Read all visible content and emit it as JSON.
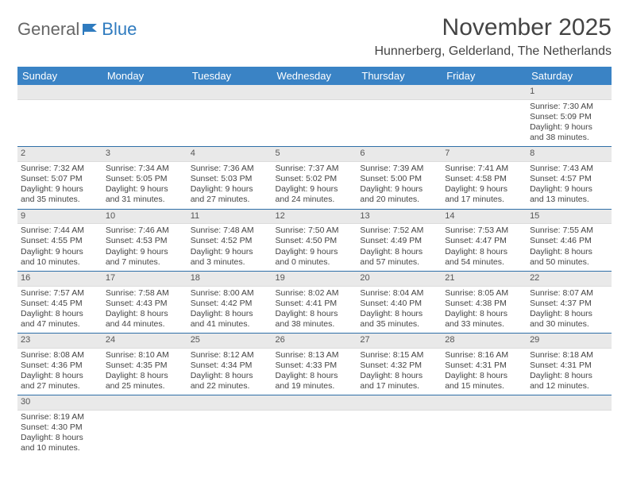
{
  "logo": {
    "text_general": "General",
    "text_blue": "Blue"
  },
  "title": "November 2025",
  "location": "Hunnerberg, Gelderland, The Netherlands",
  "colors": {
    "header_bg": "#3a83c5",
    "header_text": "#ffffff",
    "daynum_bg": "#e9e9e9",
    "row_border": "#2f6fa8",
    "logo_blue": "#2f7bbf",
    "text": "#444444"
  },
  "day_headers": [
    "Sunday",
    "Monday",
    "Tuesday",
    "Wednesday",
    "Thursday",
    "Friday",
    "Saturday"
  ],
  "weeks": [
    [
      {
        "blank": true
      },
      {
        "blank": true
      },
      {
        "blank": true
      },
      {
        "blank": true
      },
      {
        "blank": true
      },
      {
        "blank": true
      },
      {
        "n": "1",
        "sunrise": "Sunrise: 7:30 AM",
        "sunset": "Sunset: 5:09 PM",
        "day1": "Daylight: 9 hours",
        "day2": "and 38 minutes."
      }
    ],
    [
      {
        "n": "2",
        "sunrise": "Sunrise: 7:32 AM",
        "sunset": "Sunset: 5:07 PM",
        "day1": "Daylight: 9 hours",
        "day2": "and 35 minutes."
      },
      {
        "n": "3",
        "sunrise": "Sunrise: 7:34 AM",
        "sunset": "Sunset: 5:05 PM",
        "day1": "Daylight: 9 hours",
        "day2": "and 31 minutes."
      },
      {
        "n": "4",
        "sunrise": "Sunrise: 7:36 AM",
        "sunset": "Sunset: 5:03 PM",
        "day1": "Daylight: 9 hours",
        "day2": "and 27 minutes."
      },
      {
        "n": "5",
        "sunrise": "Sunrise: 7:37 AM",
        "sunset": "Sunset: 5:02 PM",
        "day1": "Daylight: 9 hours",
        "day2": "and 24 minutes."
      },
      {
        "n": "6",
        "sunrise": "Sunrise: 7:39 AM",
        "sunset": "Sunset: 5:00 PM",
        "day1": "Daylight: 9 hours",
        "day2": "and 20 minutes."
      },
      {
        "n": "7",
        "sunrise": "Sunrise: 7:41 AM",
        "sunset": "Sunset: 4:58 PM",
        "day1": "Daylight: 9 hours",
        "day2": "and 17 minutes."
      },
      {
        "n": "8",
        "sunrise": "Sunrise: 7:43 AM",
        "sunset": "Sunset: 4:57 PM",
        "day1": "Daylight: 9 hours",
        "day2": "and 13 minutes."
      }
    ],
    [
      {
        "n": "9",
        "sunrise": "Sunrise: 7:44 AM",
        "sunset": "Sunset: 4:55 PM",
        "day1": "Daylight: 9 hours",
        "day2": "and 10 minutes."
      },
      {
        "n": "10",
        "sunrise": "Sunrise: 7:46 AM",
        "sunset": "Sunset: 4:53 PM",
        "day1": "Daylight: 9 hours",
        "day2": "and 7 minutes."
      },
      {
        "n": "11",
        "sunrise": "Sunrise: 7:48 AM",
        "sunset": "Sunset: 4:52 PM",
        "day1": "Daylight: 9 hours",
        "day2": "and 3 minutes."
      },
      {
        "n": "12",
        "sunrise": "Sunrise: 7:50 AM",
        "sunset": "Sunset: 4:50 PM",
        "day1": "Daylight: 9 hours",
        "day2": "and 0 minutes."
      },
      {
        "n": "13",
        "sunrise": "Sunrise: 7:52 AM",
        "sunset": "Sunset: 4:49 PM",
        "day1": "Daylight: 8 hours",
        "day2": "and 57 minutes."
      },
      {
        "n": "14",
        "sunrise": "Sunrise: 7:53 AM",
        "sunset": "Sunset: 4:47 PM",
        "day1": "Daylight: 8 hours",
        "day2": "and 54 minutes."
      },
      {
        "n": "15",
        "sunrise": "Sunrise: 7:55 AM",
        "sunset": "Sunset: 4:46 PM",
        "day1": "Daylight: 8 hours",
        "day2": "and 50 minutes."
      }
    ],
    [
      {
        "n": "16",
        "sunrise": "Sunrise: 7:57 AM",
        "sunset": "Sunset: 4:45 PM",
        "day1": "Daylight: 8 hours",
        "day2": "and 47 minutes."
      },
      {
        "n": "17",
        "sunrise": "Sunrise: 7:58 AM",
        "sunset": "Sunset: 4:43 PM",
        "day1": "Daylight: 8 hours",
        "day2": "and 44 minutes."
      },
      {
        "n": "18",
        "sunrise": "Sunrise: 8:00 AM",
        "sunset": "Sunset: 4:42 PM",
        "day1": "Daylight: 8 hours",
        "day2": "and 41 minutes."
      },
      {
        "n": "19",
        "sunrise": "Sunrise: 8:02 AM",
        "sunset": "Sunset: 4:41 PM",
        "day1": "Daylight: 8 hours",
        "day2": "and 38 minutes."
      },
      {
        "n": "20",
        "sunrise": "Sunrise: 8:04 AM",
        "sunset": "Sunset: 4:40 PM",
        "day1": "Daylight: 8 hours",
        "day2": "and 35 minutes."
      },
      {
        "n": "21",
        "sunrise": "Sunrise: 8:05 AM",
        "sunset": "Sunset: 4:38 PM",
        "day1": "Daylight: 8 hours",
        "day2": "and 33 minutes."
      },
      {
        "n": "22",
        "sunrise": "Sunrise: 8:07 AM",
        "sunset": "Sunset: 4:37 PM",
        "day1": "Daylight: 8 hours",
        "day2": "and 30 minutes."
      }
    ],
    [
      {
        "n": "23",
        "sunrise": "Sunrise: 8:08 AM",
        "sunset": "Sunset: 4:36 PM",
        "day1": "Daylight: 8 hours",
        "day2": "and 27 minutes."
      },
      {
        "n": "24",
        "sunrise": "Sunrise: 8:10 AM",
        "sunset": "Sunset: 4:35 PM",
        "day1": "Daylight: 8 hours",
        "day2": "and 25 minutes."
      },
      {
        "n": "25",
        "sunrise": "Sunrise: 8:12 AM",
        "sunset": "Sunset: 4:34 PM",
        "day1": "Daylight: 8 hours",
        "day2": "and 22 minutes."
      },
      {
        "n": "26",
        "sunrise": "Sunrise: 8:13 AM",
        "sunset": "Sunset: 4:33 PM",
        "day1": "Daylight: 8 hours",
        "day2": "and 19 minutes."
      },
      {
        "n": "27",
        "sunrise": "Sunrise: 8:15 AM",
        "sunset": "Sunset: 4:32 PM",
        "day1": "Daylight: 8 hours",
        "day2": "and 17 minutes."
      },
      {
        "n": "28",
        "sunrise": "Sunrise: 8:16 AM",
        "sunset": "Sunset: 4:31 PM",
        "day1": "Daylight: 8 hours",
        "day2": "and 15 minutes."
      },
      {
        "n": "29",
        "sunrise": "Sunrise: 8:18 AM",
        "sunset": "Sunset: 4:31 PM",
        "day1": "Daylight: 8 hours",
        "day2": "and 12 minutes."
      }
    ],
    [
      {
        "n": "30",
        "sunrise": "Sunrise: 8:19 AM",
        "sunset": "Sunset: 4:30 PM",
        "day1": "Daylight: 8 hours",
        "day2": "and 10 minutes."
      },
      {
        "blank": true
      },
      {
        "blank": true
      },
      {
        "blank": true
      },
      {
        "blank": true
      },
      {
        "blank": true
      },
      {
        "blank": true
      }
    ]
  ]
}
